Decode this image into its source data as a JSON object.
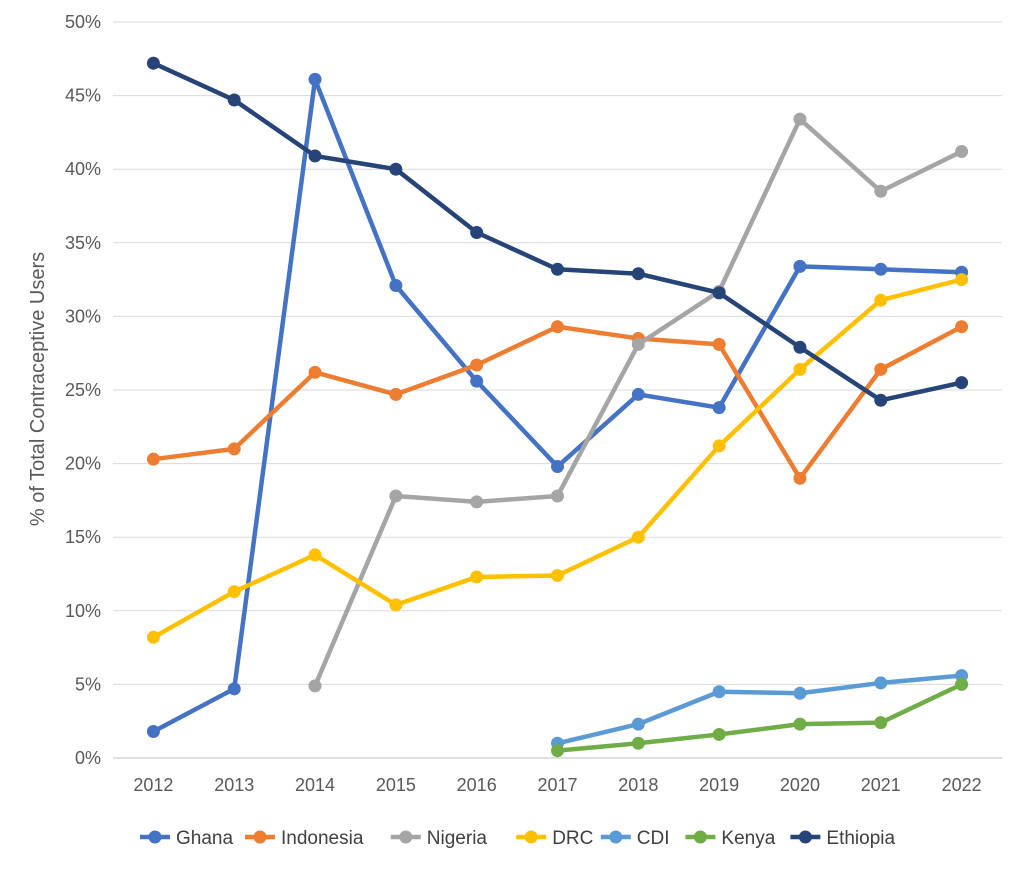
{
  "chart_data": {
    "type": "line",
    "title": "",
    "xlabel": "",
    "ylabel": "% of Total Contraceptive Users",
    "ylim": [
      0,
      50
    ],
    "y_ticks": [
      "0%",
      "5%",
      "10%",
      "15%",
      "20%",
      "25%",
      "30%",
      "35%",
      "40%",
      "45%",
      "50%"
    ],
    "y_tick_values": [
      0,
      5,
      10,
      15,
      20,
      25,
      30,
      35,
      40,
      45,
      50
    ],
    "grid": true,
    "legend_position": "bottom",
    "x": [
      "2012",
      "2013",
      "2014",
      "2015",
      "2016",
      "2017",
      "2018",
      "2019",
      "2020",
      "2021",
      "2022"
    ],
    "series": [
      {
        "name": "Ghana",
        "color": "#4472C4",
        "values": [
          1.8,
          4.7,
          46.1,
          32.1,
          25.6,
          19.8,
          24.7,
          23.8,
          33.4,
          33.2,
          33.0
        ]
      },
      {
        "name": "Indonesia",
        "color": "#ED7D31",
        "values": [
          20.3,
          21.0,
          26.2,
          24.7,
          26.7,
          29.3,
          28.5,
          28.1,
          19.0,
          26.4,
          29.3
        ]
      },
      {
        "name": "Nigeria",
        "color": "#A5A5A5",
        "values": [
          null,
          null,
          4.9,
          17.8,
          17.4,
          17.8,
          28.1,
          31.7,
          43.4,
          38.5,
          41.2
        ]
      },
      {
        "name": "DRC",
        "color": "#FFC000",
        "values": [
          8.2,
          11.3,
          13.8,
          10.4,
          12.3,
          12.4,
          15.0,
          21.2,
          26.4,
          31.1,
          32.5
        ]
      },
      {
        "name": "CDI",
        "color": "#5B9BD5",
        "values": [
          null,
          null,
          null,
          null,
          null,
          1.0,
          2.3,
          4.5,
          4.4,
          5.1,
          5.6
        ]
      },
      {
        "name": "Kenya",
        "color": "#70AD47",
        "values": [
          null,
          null,
          null,
          null,
          null,
          0.5,
          1.0,
          1.6,
          2.3,
          2.4,
          5.0
        ]
      },
      {
        "name": "Ethiopia",
        "color": "#264478",
        "values": [
          47.2,
          44.7,
          40.9,
          40.0,
          35.7,
          33.2,
          32.9,
          31.6,
          27.9,
          24.3,
          25.5
        ]
      }
    ]
  }
}
